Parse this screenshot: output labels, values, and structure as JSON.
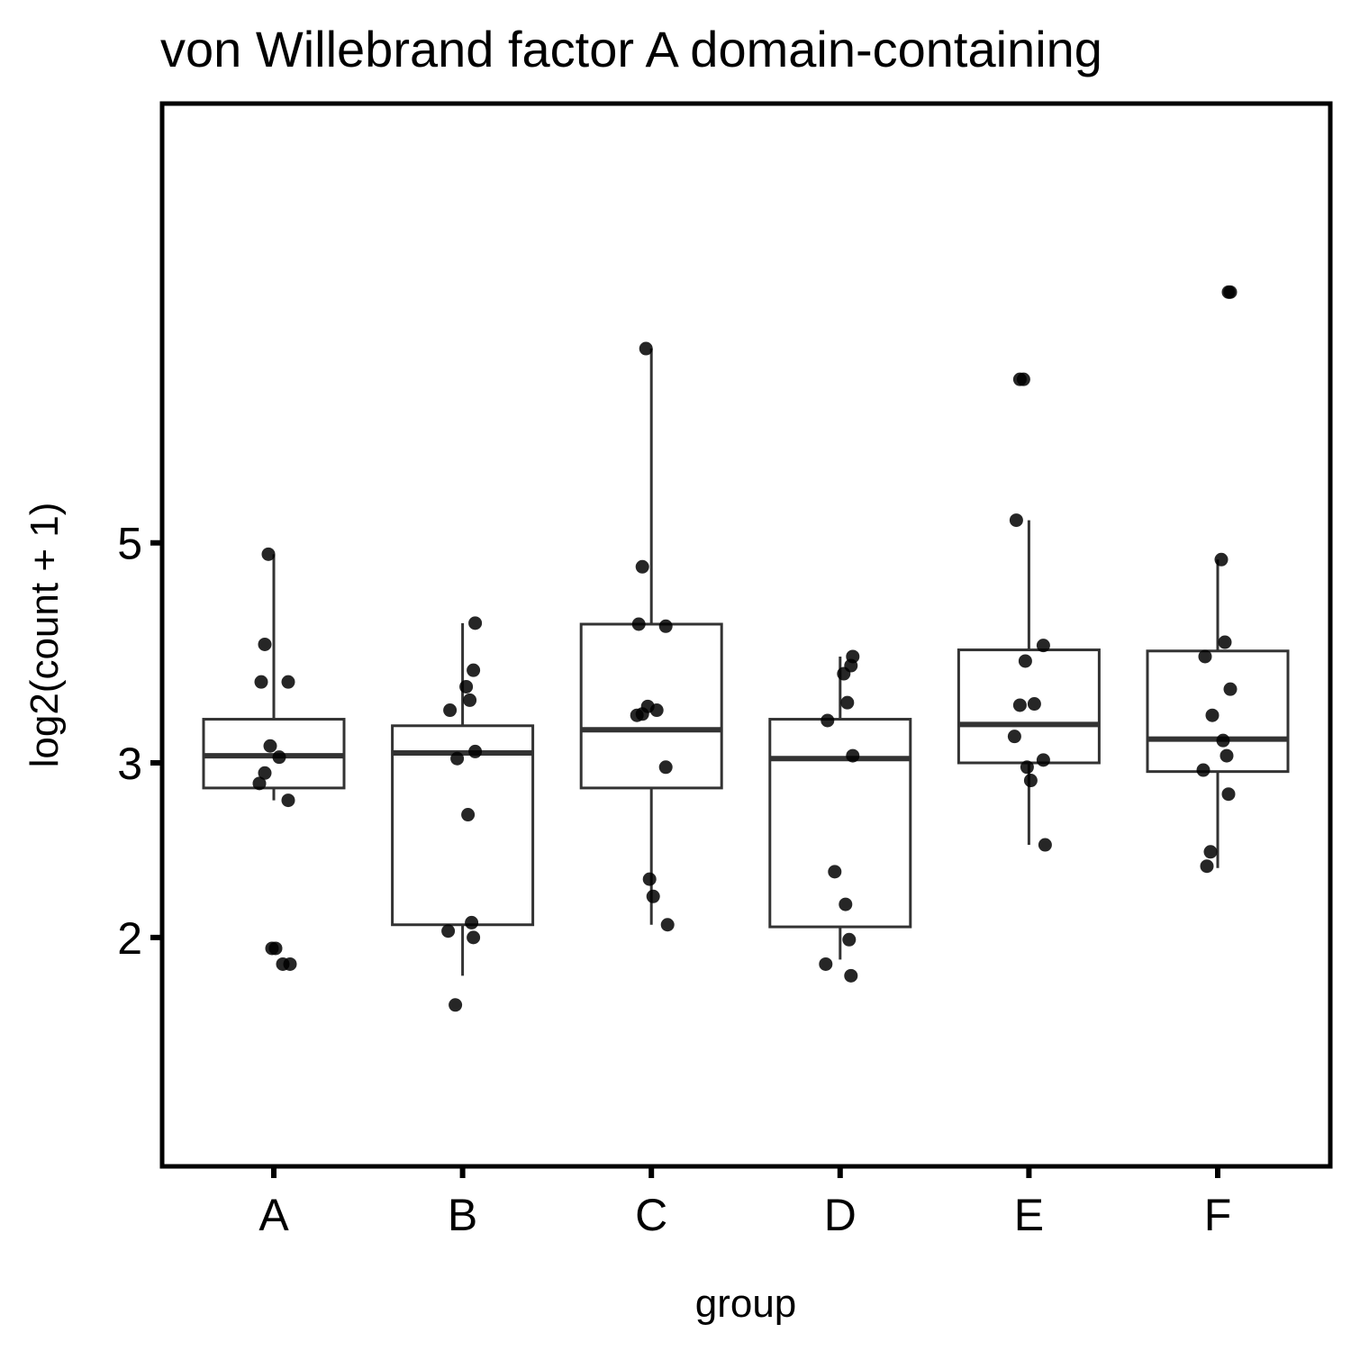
{
  "chart_data": {
    "type": "boxplot",
    "title": "von Willebrand factor A domain-containing",
    "xlabel": "group",
    "ylabel": "log2(count + 1)",
    "y_scale": "log",
    "y_ticks": [
      2,
      3,
      5
    ],
    "ylim": [
      1.73,
      8.95
    ],
    "categories": [
      "A",
      "B",
      "C",
      "D",
      "E",
      "F"
    ],
    "boxes": [
      {
        "group": "A",
        "lower_whisker": 2.75,
        "q1": 2.83,
        "median": 3.05,
        "q3": 3.32,
        "upper_whisker": 4.87
      },
      {
        "group": "B",
        "lower_whisker": 1.83,
        "q1": 2.06,
        "median": 3.07,
        "q3": 3.27,
        "upper_whisker": 4.15
      },
      {
        "group": "C",
        "lower_whisker": 2.06,
        "q1": 2.83,
        "median": 3.24,
        "q3": 4.14,
        "upper_whisker": 7.85
      },
      {
        "group": "D",
        "lower_whisker": 1.9,
        "q1": 2.05,
        "median": 3.03,
        "q3": 3.32,
        "upper_whisker": 3.84
      },
      {
        "group": "E",
        "lower_whisker": 2.48,
        "q1": 3.0,
        "median": 3.28,
        "q3": 3.9,
        "upper_whisker": 5.27
      },
      {
        "group": "F",
        "lower_whisker": 2.35,
        "q1": 2.94,
        "median": 3.17,
        "q3": 3.89,
        "upper_whisker": 4.81
      }
    ],
    "points": [
      {
        "group": "A",
        "values": [
          4.87,
          3.95,
          3.62,
          3.62,
          3.12,
          3.04,
          2.93,
          2.86,
          2.75,
          1.95,
          1.95,
          1.88,
          1.88
        ]
      },
      {
        "group": "B",
        "values": [
          4.15,
          3.72,
          3.58,
          3.47,
          3.39,
          3.08,
          3.03,
          2.66,
          2.07,
          2.03,
          2.0,
          1.71
        ]
      },
      {
        "group": "C",
        "values": [
          7.85,
          4.73,
          4.14,
          4.12,
          3.42,
          3.39,
          3.36,
          3.35,
          2.97,
          2.29,
          2.2,
          2.06
        ]
      },
      {
        "group": "D",
        "values": [
          3.84,
          3.76,
          3.69,
          3.45,
          3.31,
          3.05,
          2.33,
          2.16,
          1.99,
          1.88,
          1.83
        ]
      },
      {
        "group": "E",
        "values": [
          7.31,
          7.31,
          5.27,
          3.94,
          3.8,
          3.44,
          3.43,
          3.19,
          3.02,
          2.97,
          2.88,
          2.48
        ]
      },
      {
        "group": "F",
        "values": [
          8.95,
          8.95,
          4.81,
          3.97,
          3.84,
          3.56,
          3.35,
          3.16,
          3.05,
          2.95,
          2.79,
          2.44,
          2.36
        ]
      }
    ]
  }
}
